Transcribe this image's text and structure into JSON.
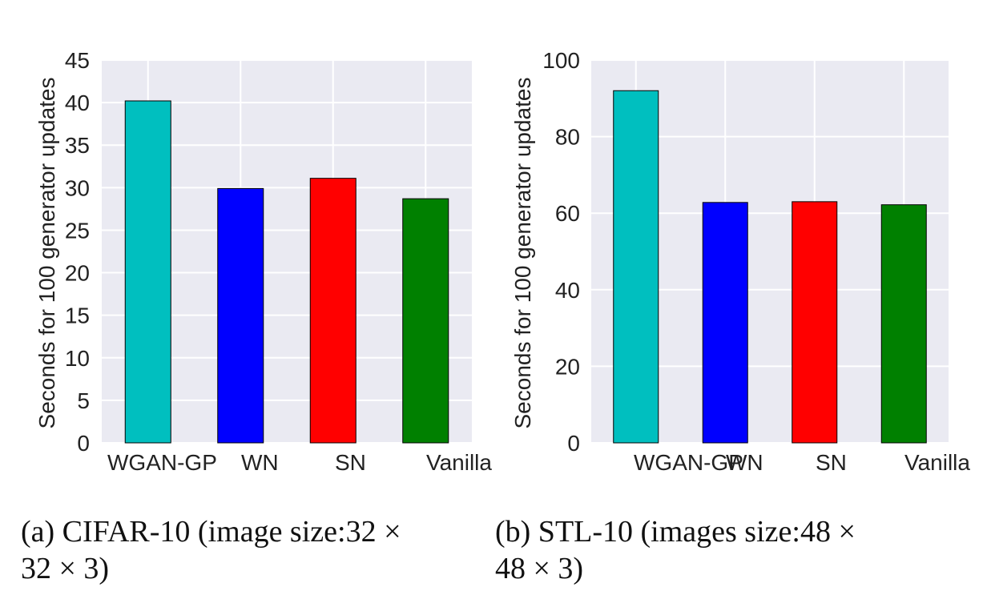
{
  "chart_data": [
    {
      "type": "bar",
      "caption_line1": "(a)  CIFAR-10 (image size:32 ×",
      "caption_line2": "32 × 3)",
      "ylabel": "Seconds for 100 generator updates",
      "categories": [
        "WGAN-GP",
        "WN",
        "SN",
        "Vanilla"
      ],
      "values": [
        40.2,
        29.9,
        31.1,
        28.7
      ],
      "colors": [
        "#00bfbf",
        "#0000ff",
        "#ff0000",
        "#008000"
      ],
      "ylim": [
        0,
        45
      ],
      "yticks": [
        0,
        5,
        10,
        15,
        20,
        25,
        30,
        35,
        40,
        45
      ],
      "grid": true,
      "background": "#eaeaf2"
    },
    {
      "type": "bar",
      "caption_line1": "(b)   STL-10  (images  size:48 ×",
      "caption_line2": "48 × 3)",
      "ylabel": "Seconds for 100 generator updates",
      "categories": [
        "WGAN-GP",
        "WN",
        "SN",
        "Vanilla"
      ],
      "values": [
        92.0,
        62.8,
        63.0,
        62.2
      ],
      "colors": [
        "#00bfbf",
        "#0000ff",
        "#ff0000",
        "#008000"
      ],
      "ylim": [
        0,
        100
      ],
      "yticks": [
        0,
        20,
        40,
        60,
        80,
        100
      ],
      "grid": true,
      "background": "#eaeaf2"
    }
  ]
}
